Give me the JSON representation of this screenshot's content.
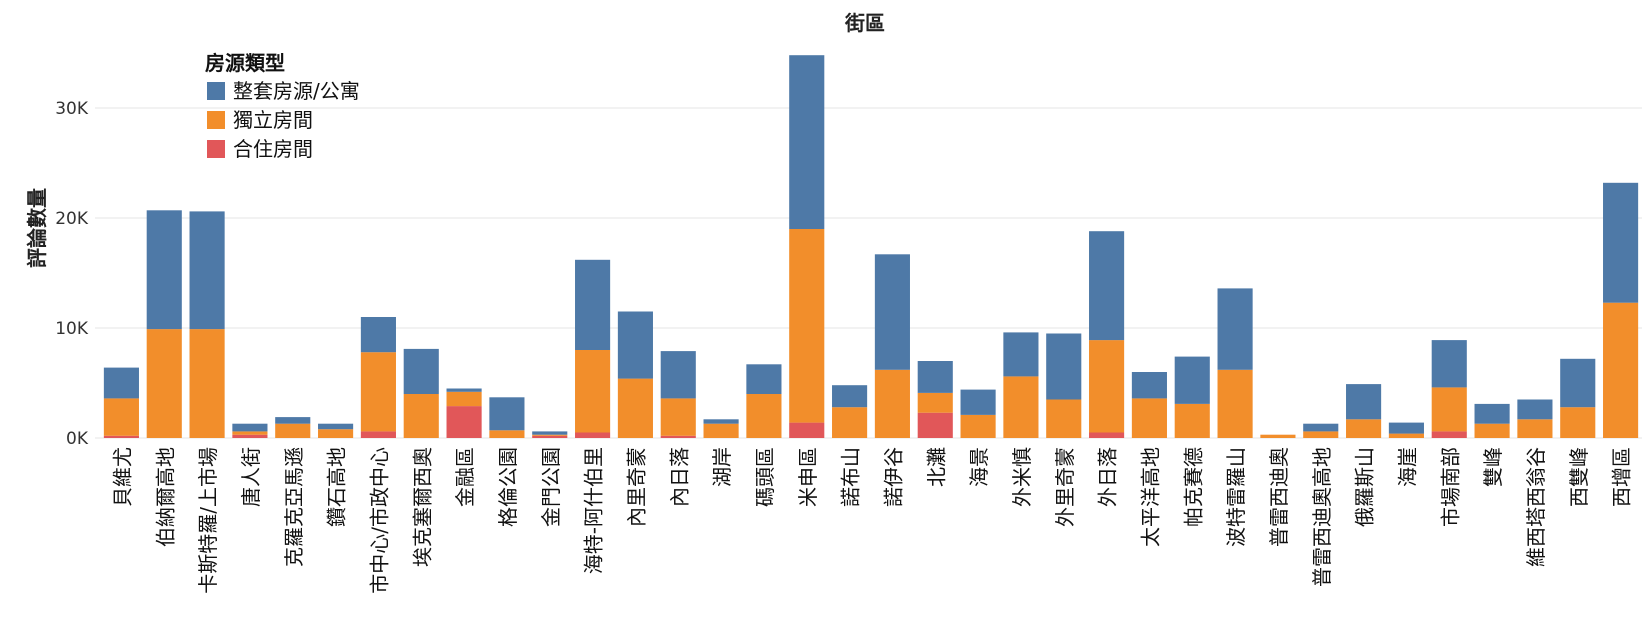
{
  "chart_data": {
    "type": "bar",
    "stacked": true,
    "title": "街區",
    "xlabel": "",
    "ylabel": "評論數量",
    "ylim": [
      0,
      35000
    ],
    "yticks": [
      0,
      10000,
      20000,
      30000
    ],
    "ytick_labels": [
      "0K",
      "10K",
      "20K",
      "30K"
    ],
    "grid": true,
    "legend_title": "房源類型",
    "legend_position": "top-left",
    "categories": [
      "貝維尤",
      "伯納爾高地",
      "卡斯特羅/上市場",
      "唐人街",
      "克羅克亞馬遜",
      "鑽石高地",
      "市中心/市政中心",
      "埃克塞爾西奧",
      "金融區",
      "格倫公園",
      "金門公園",
      "海特-阿什伯里",
      "內里奇蒙",
      "內日落",
      "湖岸",
      "碼頭區",
      "米申區",
      "諾布山",
      "諾伊谷",
      "北灘",
      "海景",
      "外米慎",
      "外里奇蒙",
      "外日落",
      "太平洋高地",
      "帕克賽德",
      "波特雷羅山",
      "普雷西迪奧",
      "普雷西迪奧高地",
      "俄羅斯山",
      "海崖",
      "市場南部",
      "雙峰",
      "維西塔西翁谷",
      "西雙峰",
      "西增區"
    ],
    "series": [
      {
        "name": "合住房間",
        "color": "#e15759",
        "values": [
          200,
          0,
          0,
          300,
          0,
          0,
          600,
          0,
          2900,
          0,
          200,
          500,
          0,
          200,
          0,
          0,
          1400,
          0,
          0,
          2300,
          0,
          0,
          0,
          500,
          0,
          0,
          0,
          0,
          0,
          0,
          0,
          600,
          0,
          0,
          0,
          0
        ]
      },
      {
        "name": "獨立房間",
        "color": "#f28e2b",
        "values": [
          3400,
          9900,
          9900,
          300,
          1300,
          800,
          7200,
          4000,
          1300,
          700,
          100,
          7500,
          5400,
          3400,
          1300,
          4000,
          17600,
          2800,
          6200,
          1800,
          2100,
          5600,
          3500,
          8400,
          3600,
          3100,
          6200,
          300,
          600,
          1700,
          400,
          4000,
          1300,
          1700,
          2800,
          12300
        ]
      },
      {
        "name": "整套房源/公寓",
        "color": "#4e79a7",
        "values": [
          2800,
          10800,
          10700,
          700,
          600,
          500,
          3200,
          4100,
          300,
          3000,
          300,
          8200,
          6100,
          4300,
          400,
          2700,
          15800,
          2000,
          10500,
          2900,
          2300,
          4000,
          6000,
          9900,
          2400,
          4300,
          7400,
          0,
          700,
          3200,
          1000,
          4300,
          1800,
          1800,
          4400,
          10900
        ]
      }
    ]
  }
}
